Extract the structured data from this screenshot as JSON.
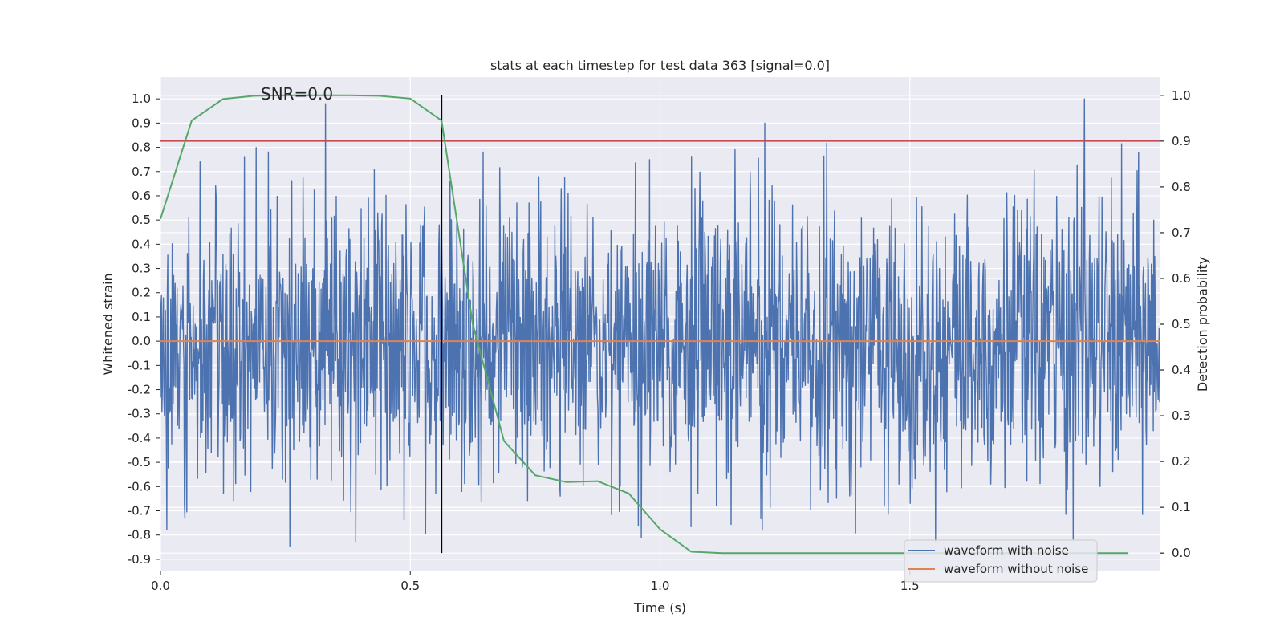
{
  "chart_data": {
    "type": "line",
    "title": "stats at each timestep for test data 363 [signal=0.0]",
    "xlabel": "Time (s)",
    "ylabel": "Whitened strain",
    "y2label": "Detection probability",
    "annotation": "SNR=0.0",
    "xlim": [
      0.0,
      2.0
    ],
    "ylim": [
      -0.95,
      1.09
    ],
    "y2lim": [
      -0.04,
      1.04
    ],
    "xticks": [
      {
        "value": 0.0,
        "label": "0.0"
      },
      {
        "value": 0.5,
        "label": "0.5"
      },
      {
        "value": 1.0,
        "label": "1.0"
      },
      {
        "value": 1.5,
        "label": "1.5"
      }
    ],
    "yticks": [
      {
        "value": 1.0,
        "label": "1.0"
      },
      {
        "value": 0.9,
        "label": "0.9"
      },
      {
        "value": 0.8,
        "label": "0.8"
      },
      {
        "value": 0.7,
        "label": "0.7"
      },
      {
        "value": 0.6,
        "label": "0.6"
      },
      {
        "value": 0.5,
        "label": "0.5"
      },
      {
        "value": 0.4,
        "label": "0.4"
      },
      {
        "value": 0.3,
        "label": "0.3"
      },
      {
        "value": 0.2,
        "label": "0.2"
      },
      {
        "value": 0.1,
        "label": "0.1"
      },
      {
        "value": 0.0,
        "label": "0.0"
      },
      {
        "value": -0.1,
        "label": "-0.1"
      },
      {
        "value": -0.2,
        "label": "-0.2"
      },
      {
        "value": -0.3,
        "label": "-0.3"
      },
      {
        "value": -0.4,
        "label": "-0.4"
      },
      {
        "value": -0.5,
        "label": "-0.5"
      },
      {
        "value": -0.6,
        "label": "-0.6"
      },
      {
        "value": -0.7,
        "label": "-0.7"
      },
      {
        "value": -0.8,
        "label": "-0.8"
      },
      {
        "value": -0.9,
        "label": "-0.9"
      }
    ],
    "y2ticks": [
      {
        "value": 1.0,
        "label": "1.0"
      },
      {
        "value": 0.9,
        "label": "0.9"
      },
      {
        "value": 0.8,
        "label": "0.8"
      },
      {
        "value": 0.7,
        "label": "0.7"
      },
      {
        "value": 0.6,
        "label": "0.6"
      },
      {
        "value": 0.5,
        "label": "0.5"
      },
      {
        "value": 0.4,
        "label": "0.4"
      },
      {
        "value": 0.3,
        "label": "0.3"
      },
      {
        "value": 0.2,
        "label": "0.2"
      },
      {
        "value": 0.1,
        "label": "0.1"
      },
      {
        "value": 0.0,
        "label": "0.0"
      }
    ],
    "series": [
      {
        "name": "waveform with noise",
        "color": "#4c72b0",
        "axis": "left",
        "kind": "noise",
        "samples": 2048,
        "x_range": [
          0.0,
          2.0
        ],
        "amplitude_std": 0.3,
        "max_value": 1.0,
        "min_value": -0.86,
        "notable_peaks": [
          {
            "x": 0.33,
            "y": 0.98
          },
          {
            "x": 1.21,
            "y": 0.9
          },
          {
            "x": 1.85,
            "y": 1.0
          }
        ]
      },
      {
        "name": "waveform without noise",
        "color": "#dd8452",
        "axis": "left",
        "x": [
          0.0,
          2.0
        ],
        "y": [
          0.0,
          0.0
        ]
      },
      {
        "name": "detection probability",
        "color": "#55a868",
        "axis": "right",
        "x": [
          0.0,
          0.0625,
          0.125,
          0.1875,
          0.25,
          0.3125,
          0.375,
          0.4375,
          0.5,
          0.5625,
          0.625,
          0.6875,
          0.75,
          0.8125,
          0.875,
          0.9375,
          1.0,
          1.0625,
          1.125,
          1.1875,
          1.25,
          1.3125,
          1.375,
          1.4375,
          1.5,
          1.5625,
          1.625,
          1.6875,
          1.75,
          1.8125,
          1.875,
          1.9375
        ],
        "y": [
          0.73,
          0.945,
          0.992,
          0.999,
          1.0,
          1.0,
          1.0,
          0.999,
          0.993,
          0.945,
          0.5,
          0.245,
          0.17,
          0.155,
          0.157,
          0.13,
          0.052,
          0.003,
          0.0,
          0.0,
          0.0,
          0.0,
          0.0,
          0.0,
          0.0,
          0.0,
          0.0,
          0.0,
          0.0,
          0.0,
          0.0,
          0.0
        ]
      }
    ],
    "threshold_line": {
      "axis": "right",
      "y": 0.9,
      "color": "#c44e52"
    },
    "vertical_marker": {
      "x": 0.5625,
      "y_from": 0.0,
      "y_to": 1.0,
      "axis": "right",
      "color": "#000000"
    },
    "legend": {
      "position": "lower-right",
      "entries": [
        {
          "label": "waveform with noise",
          "color": "#4c72b0"
        },
        {
          "label": "waveform without noise",
          "color": "#dd8452"
        }
      ]
    },
    "grid": true,
    "background": "#eaeaf2"
  }
}
